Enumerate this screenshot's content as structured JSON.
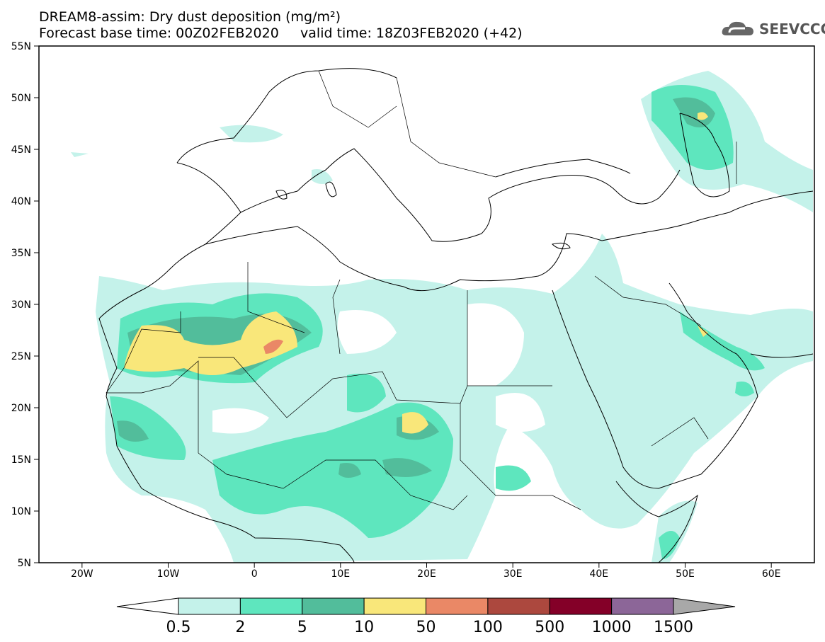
{
  "title": {
    "line1": "DREAM8-assim: Dry dust deposition (mg/m²)",
    "line2": "Forecast base time: 00Z02FEB2020     valid time: 18Z03FEB2020 (+42)"
  },
  "logo": {
    "text": "SEEVCCC",
    "icon": "cloud-icon"
  },
  "map": {
    "lat_labels": [
      "55N",
      "50N",
      "45N",
      "40N",
      "35N",
      "30N",
      "25N",
      "20N",
      "15N",
      "10N",
      "5N"
    ],
    "lon_labels": [
      "20W",
      "10W",
      "0",
      "10E",
      "20E",
      "30E",
      "40E",
      "50E",
      "60E"
    ],
    "lon_range": [
      -25,
      65
    ],
    "lat_range": [
      5,
      55
    ]
  },
  "colorbar": {
    "labels": [
      "0.5",
      "2",
      "5",
      "10",
      "50",
      "100",
      "500",
      "1000",
      "1500"
    ],
    "colors": [
      "#c4f2ea",
      "#5ee6be",
      "#52bd9b",
      "#f9e77a",
      "#ea8866",
      "#ac483e",
      "#840028",
      "#8c6698"
    ],
    "under_color": "#ffffff",
    "over_color": "#a8a8a8"
  }
}
